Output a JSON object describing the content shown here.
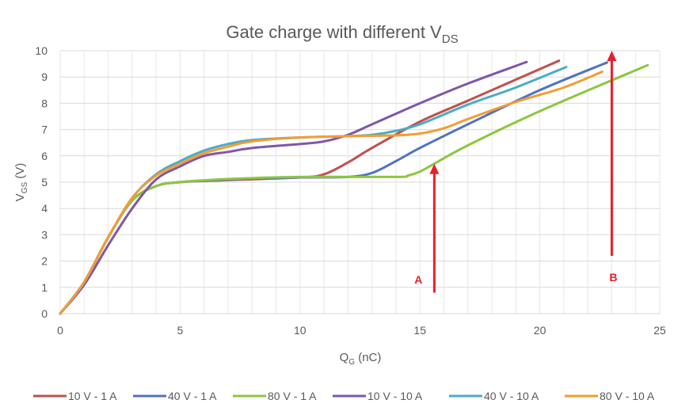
{
  "chart_data": {
    "type": "line",
    "title": "Gate charge with different V",
    "title_sub": "DS",
    "xlabel": "Q",
    "xlabel_sub": "G",
    "xlabel_unit": " (nC)",
    "ylabel": "V",
    "ylabel_sub": "GS",
    "ylabel_unit": " (V)",
    "xlim": [
      0,
      25
    ],
    "ylim": [
      0,
      10
    ],
    "xticks": [
      "0",
      "5",
      "10",
      "15",
      "20",
      "25"
    ],
    "yticks": [
      "0",
      "1",
      "2",
      "3",
      "4",
      "5",
      "6",
      "7",
      "8",
      "9",
      "10"
    ],
    "grid": true,
    "legend_position": "bottom",
    "series": [
      {
        "name": "10 V - 1 A",
        "color": "#C0504D",
        "points": [
          [
            0,
            0
          ],
          [
            1,
            1.2
          ],
          [
            2,
            2.9
          ],
          [
            3,
            4.3
          ],
          [
            4,
            4.85
          ],
          [
            5,
            5.0
          ],
          [
            7,
            5.08
          ],
          [
            10,
            5.18
          ],
          [
            11,
            5.3
          ],
          [
            12,
            5.75
          ],
          [
            13,
            6.3
          ],
          [
            15,
            7.3
          ],
          [
            17,
            8.1
          ],
          [
            20.8,
            9.62
          ]
        ]
      },
      {
        "name": "40 V - 1 A",
        "color": "#4F72C4",
        "points": [
          [
            0,
            0
          ],
          [
            1,
            1.2
          ],
          [
            2,
            2.9
          ],
          [
            3,
            4.3
          ],
          [
            4,
            4.85
          ],
          [
            5,
            5.0
          ],
          [
            7,
            5.1
          ],
          [
            10,
            5.18
          ],
          [
            12,
            5.2
          ],
          [
            13,
            5.35
          ],
          [
            14,
            5.8
          ],
          [
            15,
            6.3
          ],
          [
            17,
            7.2
          ],
          [
            20,
            8.5
          ],
          [
            22.8,
            9.55
          ]
        ]
      },
      {
        "name": "80 V - 1 A",
        "color": "#8DC63F",
        "points": [
          [
            0,
            0
          ],
          [
            1,
            1.2
          ],
          [
            2,
            2.9
          ],
          [
            3,
            4.3
          ],
          [
            4,
            4.85
          ],
          [
            5,
            5.0
          ],
          [
            7,
            5.12
          ],
          [
            10,
            5.2
          ],
          [
            14,
            5.2
          ],
          [
            14.5,
            5.25
          ],
          [
            15,
            5.4
          ],
          [
            15.5,
            5.65
          ],
          [
            17,
            6.4
          ],
          [
            20,
            7.7
          ],
          [
            24.5,
            9.45
          ]
        ]
      },
      {
        "name": "10 V - 10 A",
        "color": "#7F56A8",
        "points": [
          [
            0,
            0
          ],
          [
            1,
            1.1
          ],
          [
            2,
            2.6
          ],
          [
            3,
            4.0
          ],
          [
            4,
            5.1
          ],
          [
            5,
            5.6
          ],
          [
            6,
            6.0
          ],
          [
            7,
            6.15
          ],
          [
            8,
            6.3
          ],
          [
            10,
            6.45
          ],
          [
            11,
            6.55
          ],
          [
            12,
            6.8
          ],
          [
            13,
            7.2
          ],
          [
            15,
            8.0
          ],
          [
            17,
            8.75
          ],
          [
            19.45,
            9.57
          ]
        ]
      },
      {
        "name": "40 V - 10 A",
        "color": "#4BACC6",
        "points": [
          [
            0,
            0
          ],
          [
            1,
            1.2
          ],
          [
            2,
            2.9
          ],
          [
            3,
            4.4
          ],
          [
            4,
            5.3
          ],
          [
            5,
            5.8
          ],
          [
            6,
            6.2
          ],
          [
            7,
            6.45
          ],
          [
            8,
            6.6
          ],
          [
            10,
            6.7
          ],
          [
            12,
            6.75
          ],
          [
            13,
            6.8
          ],
          [
            14,
            6.95
          ],
          [
            15,
            7.2
          ],
          [
            17,
            7.95
          ],
          [
            19,
            8.6
          ],
          [
            21.1,
            9.38
          ]
        ]
      },
      {
        "name": "80 V - 10 A",
        "color": "#F39C34",
        "points": [
          [
            0,
            0
          ],
          [
            1,
            1.2
          ],
          [
            2,
            2.9
          ],
          [
            3,
            4.4
          ],
          [
            4,
            5.25
          ],
          [
            5,
            5.7
          ],
          [
            6,
            6.1
          ],
          [
            7,
            6.35
          ],
          [
            8,
            6.55
          ],
          [
            10,
            6.7
          ],
          [
            12,
            6.75
          ],
          [
            14,
            6.78
          ],
          [
            15,
            6.85
          ],
          [
            16,
            7.05
          ],
          [
            17,
            7.4
          ],
          [
            19,
            8.05
          ],
          [
            21,
            8.6
          ],
          [
            22.6,
            9.2
          ]
        ]
      }
    ],
    "annotations": [
      {
        "label": "A",
        "x": 15.6,
        "y_from": 0.8,
        "y_to": 5.7,
        "color": "#E8202A"
      },
      {
        "label": "B",
        "x": 23.0,
        "y_from": 2.2,
        "y_to": 10,
        "color": "#E8202A"
      }
    ]
  }
}
